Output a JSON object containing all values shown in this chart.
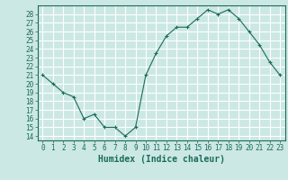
{
  "x": [
    0,
    1,
    2,
    3,
    4,
    5,
    6,
    7,
    8,
    9,
    10,
    11,
    12,
    13,
    14,
    15,
    16,
    17,
    18,
    19,
    20,
    21,
    22,
    23
  ],
  "y": [
    21,
    20,
    19,
    18.5,
    16,
    16.5,
    15,
    15,
    14,
    15,
    21,
    23.5,
    25.5,
    26.5,
    26.5,
    27.5,
    28.5,
    28,
    28.5,
    27.5,
    26,
    24.5,
    22.5,
    21
  ],
  "line_color": "#1a6b5a",
  "marker": "+",
  "marker_size": 3,
  "bg_color": "#cce8e4",
  "grid_color": "#ffffff",
  "xlabel": "Humidex (Indice chaleur)",
  "xlim": [
    -0.5,
    23.5
  ],
  "ylim": [
    13.5,
    29
  ],
  "yticks": [
    14,
    15,
    16,
    17,
    18,
    19,
    20,
    21,
    22,
    23,
    24,
    25,
    26,
    27,
    28
  ],
  "xticks": [
    0,
    1,
    2,
    3,
    4,
    5,
    6,
    7,
    8,
    9,
    10,
    11,
    12,
    13,
    14,
    15,
    16,
    17,
    18,
    19,
    20,
    21,
    22,
    23
  ],
  "tick_color": "#1a6b5a",
  "label_fontsize": 5.5,
  "axis_label_fontsize": 7
}
